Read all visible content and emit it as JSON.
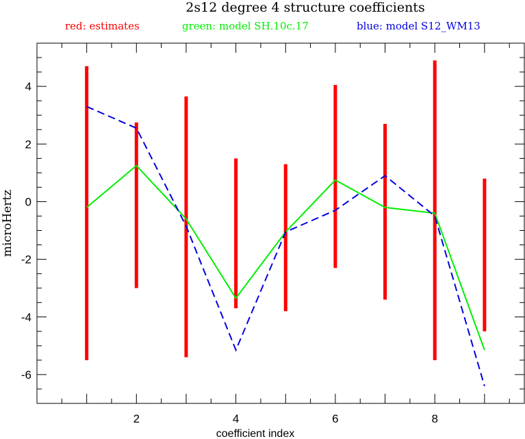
{
  "chart_data": {
    "type": "line",
    "title": "2s12 degree 4 structure coefficients",
    "xlabel": "coefficient index",
    "ylabel": "microHertz",
    "xlim": [
      0.0,
      9.8
    ],
    "ylim": [
      -7.0,
      5.5
    ],
    "x_ticks": [
      2,
      4,
      6,
      8
    ],
    "y_ticks": [
      -6,
      -4,
      -2,
      0,
      2,
      4
    ],
    "grid": false,
    "legend_position": "top",
    "x": [
      1,
      2,
      3,
      4,
      5,
      6,
      7,
      8,
      9
    ],
    "series": [
      {
        "name": "red: estimates",
        "style": "error-bar",
        "color": "#ff0000",
        "low": [
          -5.5,
          -3.0,
          -5.4,
          -3.7,
          -3.8,
          -2.3,
          -3.4,
          -5.5,
          -4.5
        ],
        "high": [
          4.7,
          2.75,
          3.65,
          1.5,
          1.3,
          4.05,
          2.7,
          4.9,
          0.8
        ]
      },
      {
        "name": "green: model SH.10c.17",
        "style": "solid",
        "color": "#00ee00",
        "values": [
          -0.2,
          1.25,
          -0.6,
          -3.35,
          -1.05,
          0.75,
          -0.2,
          -0.4,
          -5.15
        ]
      },
      {
        "name": "blue: model S12_WM13",
        "style": "dashed",
        "color": "#0000dd",
        "values": [
          3.3,
          2.55,
          -0.85,
          -5.15,
          -1.05,
          -0.3,
          0.9,
          -0.5,
          -6.4
        ]
      }
    ]
  }
}
